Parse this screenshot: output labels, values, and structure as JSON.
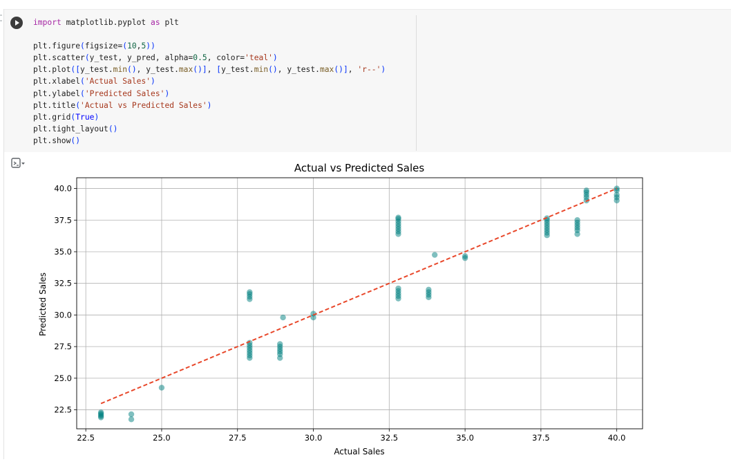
{
  "code_cell": {
    "lines": [
      [
        {
          "t": "import",
          "c": "kw"
        },
        {
          "t": " matplotlib.pyplot "
        },
        {
          "t": "as",
          "c": "kw"
        },
        {
          "t": " plt"
        }
      ],
      [],
      [
        {
          "t": "plt.figure"
        },
        {
          "t": "(",
          "c": "br"
        },
        {
          "t": "figsize="
        },
        {
          "t": "(",
          "c": "br"
        },
        {
          "t": "10",
          "c": "num"
        },
        {
          "t": ","
        },
        {
          "t": "5",
          "c": "num"
        },
        {
          "t": "))",
          "c": "br"
        }
      ],
      [
        {
          "t": "plt.scatter"
        },
        {
          "t": "(",
          "c": "br"
        },
        {
          "t": "y_test, y_pred, alpha="
        },
        {
          "t": "0.5",
          "c": "num"
        },
        {
          "t": ", color="
        },
        {
          "t": "'teal'",
          "c": "str"
        },
        {
          "t": ")",
          "c": "br"
        }
      ],
      [
        {
          "t": "plt.plot"
        },
        {
          "t": "([",
          "c": "br"
        },
        {
          "t": "y_test."
        },
        {
          "t": "min",
          "c": "fn"
        },
        {
          "t": "()",
          "c": "br"
        },
        {
          "t": ", y_test."
        },
        {
          "t": "max",
          "c": "fn"
        },
        {
          "t": "()]",
          "c": "br"
        },
        {
          "t": ", "
        },
        {
          "t": "[",
          "c": "br"
        },
        {
          "t": "y_test."
        },
        {
          "t": "min",
          "c": "fn"
        },
        {
          "t": "()",
          "c": "br"
        },
        {
          "t": ", y_test."
        },
        {
          "t": "max",
          "c": "fn"
        },
        {
          "t": "()]",
          "c": "br"
        },
        {
          "t": ", "
        },
        {
          "t": "'r--'",
          "c": "str"
        },
        {
          "t": ")",
          "c": "br"
        }
      ],
      [
        {
          "t": "plt.xlabel"
        },
        {
          "t": "(",
          "c": "br"
        },
        {
          "t": "'Actual Sales'",
          "c": "str"
        },
        {
          "t": ")",
          "c": "br"
        }
      ],
      [
        {
          "t": "plt.ylabel"
        },
        {
          "t": "(",
          "c": "br"
        },
        {
          "t": "'Predicted Sales'",
          "c": "str"
        },
        {
          "t": ")",
          "c": "br"
        }
      ],
      [
        {
          "t": "plt.title"
        },
        {
          "t": "(",
          "c": "br"
        },
        {
          "t": "'Actual vs Predicted Sales'",
          "c": "str"
        },
        {
          "t": ")",
          "c": "br"
        }
      ],
      [
        {
          "t": "plt.grid"
        },
        {
          "t": "(",
          "c": "br"
        },
        {
          "t": "True",
          "c": "const"
        },
        {
          "t": ")",
          "c": "br"
        }
      ],
      [
        {
          "t": "plt.tight_layout"
        },
        {
          "t": "()",
          "c": "br"
        }
      ],
      [
        {
          "t": "plt.show"
        },
        {
          "t": "()",
          "c": "br"
        }
      ]
    ],
    "token_colors": {
      "kw": "#a626a4",
      "str": "#a6381d",
      "num": "#116644",
      "fn": "#795e26",
      "br": "#0431fa",
      "const": "#0000ff"
    }
  },
  "icons": {
    "run": "play-icon",
    "output": "output-toggle-icon"
  },
  "chart_data": {
    "type": "scatter",
    "title": "Actual vs Predicted Sales",
    "xlabel": "Actual Sales",
    "ylabel": "Predicted Sales",
    "xlim": [
      22.2,
      40.85
    ],
    "ylim": [
      21.0,
      40.85
    ],
    "xticks": [
      "22.5",
      "25.0",
      "27.5",
      "30.0",
      "32.5",
      "35.0",
      "37.5",
      "40.0"
    ],
    "yticks": [
      "22.5",
      "25.0",
      "27.5",
      "30.0",
      "32.5",
      "35.0",
      "37.5",
      "40.0"
    ],
    "grid": true,
    "point_color": "#008080",
    "point_alpha": 0.5,
    "line_color": "#e8472a",
    "line": {
      "x": [
        23.0,
        40.0
      ],
      "y": [
        23.0,
        40.0
      ],
      "style": "dashed"
    },
    "points": [
      [
        23.0,
        21.9
      ],
      [
        23.0,
        22.0
      ],
      [
        23.0,
        22.1
      ],
      [
        23.0,
        22.2
      ],
      [
        23.0,
        22.3
      ],
      [
        24.0,
        21.75
      ],
      [
        24.0,
        22.15
      ],
      [
        25.0,
        24.25
      ],
      [
        27.9,
        26.6
      ],
      [
        27.9,
        26.8
      ],
      [
        27.9,
        27.0
      ],
      [
        27.9,
        27.2
      ],
      [
        27.9,
        27.4
      ],
      [
        27.9,
        27.6
      ],
      [
        27.9,
        27.8
      ],
      [
        27.9,
        31.25
      ],
      [
        27.9,
        31.45
      ],
      [
        27.9,
        31.65
      ],
      [
        27.9,
        31.8
      ],
      [
        28.9,
        26.6
      ],
      [
        28.9,
        26.9
      ],
      [
        28.9,
        27.1
      ],
      [
        28.9,
        27.3
      ],
      [
        28.9,
        27.5
      ],
      [
        28.9,
        27.7
      ],
      [
        29.0,
        29.8
      ],
      [
        30.0,
        29.8
      ],
      [
        30.0,
        30.1
      ],
      [
        32.8,
        31.3
      ],
      [
        32.8,
        31.5
      ],
      [
        32.8,
        31.7
      ],
      [
        32.8,
        31.9
      ],
      [
        32.8,
        32.1
      ],
      [
        32.8,
        36.4
      ],
      [
        32.8,
        36.6
      ],
      [
        32.8,
        36.8
      ],
      [
        32.8,
        37.0
      ],
      [
        32.8,
        37.2
      ],
      [
        32.8,
        37.4
      ],
      [
        32.8,
        37.6
      ],
      [
        32.8,
        37.7
      ],
      [
        33.8,
        31.4
      ],
      [
        33.8,
        31.6
      ],
      [
        33.8,
        31.8
      ],
      [
        33.8,
        32.0
      ],
      [
        34.0,
        34.75
      ],
      [
        35.0,
        34.5
      ],
      [
        35.0,
        34.65
      ],
      [
        37.7,
        36.3
      ],
      [
        37.7,
        36.5
      ],
      [
        37.7,
        36.7
      ],
      [
        37.7,
        36.9
      ],
      [
        37.7,
        37.1
      ],
      [
        37.7,
        37.3
      ],
      [
        37.7,
        37.5
      ],
      [
        37.7,
        37.65
      ],
      [
        38.7,
        36.4
      ],
      [
        38.7,
        36.7
      ],
      [
        38.7,
        36.9
      ],
      [
        38.7,
        37.1
      ],
      [
        38.7,
        37.3
      ],
      [
        38.7,
        37.5
      ],
      [
        39.0,
        39.05
      ],
      [
        39.0,
        39.3
      ],
      [
        39.0,
        39.5
      ],
      [
        39.0,
        39.7
      ],
      [
        39.0,
        39.85
      ],
      [
        40.0,
        39.05
      ],
      [
        40.0,
        39.3
      ],
      [
        40.0,
        39.5
      ],
      [
        40.0,
        39.85
      ],
      [
        40.0,
        40.0
      ]
    ]
  }
}
